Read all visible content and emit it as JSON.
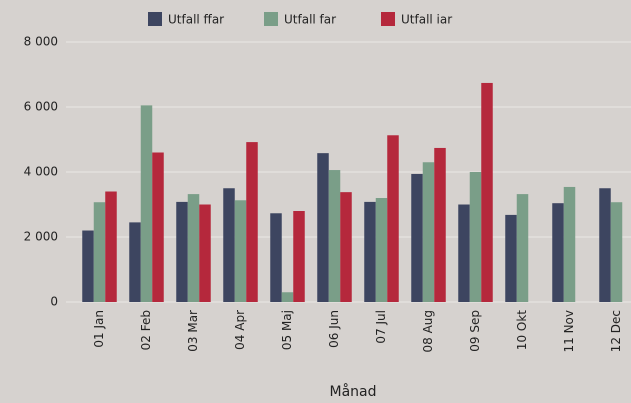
{
  "chart_data": {
    "type": "bar",
    "xlabel": "Månad",
    "categories": [
      "01 Jan",
      "02 Feb",
      "03 Mar",
      "04 Apr",
      "05 Maj",
      "06 Jun",
      "07 Jul",
      "08 Aug",
      "09 Sep",
      "10 Okt",
      "11 Nov",
      "12 Dec"
    ],
    "series": [
      {
        "name": "Utfall ffar",
        "color": "#3d4560",
        "values": [
          2200,
          2450,
          3080,
          3500,
          2730,
          4580,
          3080,
          3940,
          3000,
          2680,
          3040,
          3500
        ]
      },
      {
        "name": "Utfall far",
        "color": "#7a9e88",
        "values": [
          3070,
          6050,
          3320,
          3130,
          300,
          4060,
          3200,
          4300,
          4000,
          3320,
          3540,
          3070
        ]
      },
      {
        "name": "Utfall iar",
        "color": "#b5283c",
        "values": [
          3400,
          4600,
          3000,
          4920,
          2800,
          3380,
          5130,
          4740,
          6740,
          null,
          null,
          null
        ]
      }
    ],
    "ylim": [
      0,
      8000
    ],
    "yticks": [
      0,
      {
        "value": 2000,
        "label": "2 000"
      },
      {
        "value": 4000,
        "label": "4 000"
      },
      {
        "value": 6000,
        "label": "6 000"
      },
      {
        "value": 8000,
        "label": "8 000"
      }
    ],
    "grid": true,
    "legend": "top"
  }
}
